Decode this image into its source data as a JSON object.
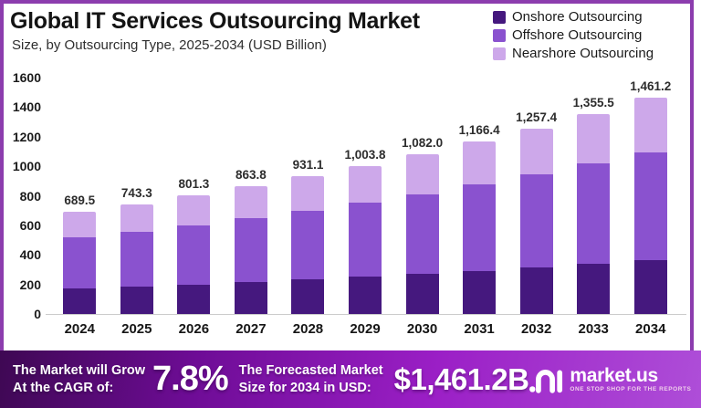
{
  "frame": {
    "border_color": "#8C3DAE",
    "background": "#ffffff"
  },
  "chart_data": {
    "type": "bar",
    "stacked": true,
    "title": "Global IT Services Outsourcing Market",
    "subtitle": "Size, by Outsourcing Type, 2025-2034 (USD Billion)",
    "units": "USD Billion",
    "categories": [
      "2024",
      "2025",
      "2026",
      "2027",
      "2028",
      "2029",
      "2030",
      "2031",
      "2032",
      "2033",
      "2034"
    ],
    "series": [
      {
        "name": "Onshore Outsourcing",
        "color": "#45187E",
        "values": [
          172.4,
          185.8,
          200.3,
          216.0,
          232.8,
          251.0,
          270.5,
          291.6,
          314.4,
          338.9,
          365.3
        ]
      },
      {
        "name": "Offshore Outsourcing",
        "color": "#8A52CF",
        "values": [
          344.7,
          371.7,
          400.7,
          431.9,
          465.5,
          501.9,
          541.0,
          583.2,
          628.6,
          677.7,
          730.6
        ]
      },
      {
        "name": "Nearshore Outsourcing",
        "color": "#CDA8EA",
        "values": [
          172.4,
          185.8,
          200.3,
          215.9,
          232.8,
          250.9,
          270.5,
          291.6,
          314.4,
          338.9,
          365.3
        ]
      }
    ],
    "totals": [
      689.5,
      743.3,
      801.3,
      863.8,
      931.1,
      1003.8,
      1082.0,
      1166.4,
      1257.4,
      1355.5,
      1461.2
    ],
    "total_labels": [
      "689.5",
      "743.3",
      "801.3",
      "863.8",
      "931.1",
      "1,003.8",
      "1,082.0",
      "1,166.4",
      "1,257.4",
      "1,355.5",
      "1,461.2"
    ],
    "ylim": [
      0,
      1600
    ],
    "ytick_step": 200,
    "yticks": [
      "0",
      "200",
      "400",
      "600",
      "800",
      "1000",
      "1200",
      "1400",
      "1600"
    ],
    "grid": false,
    "legend_position": "top-right"
  },
  "banner": {
    "left_line1": "The Market will Grow",
    "left_line2": "At the CAGR of:",
    "cagr": "7.8%",
    "right_line1": "The Forecasted Market",
    "right_line2": "Size for 2034 in USD:",
    "forecast_value": "$1,461.2B",
    "gradient": [
      "#3E0853",
      "#9B1FC6",
      "#AE4ED8"
    ],
    "brand": {
      "name": "market.us",
      "tagline": "ONE STOP SHOP FOR THE REPORTS"
    }
  }
}
